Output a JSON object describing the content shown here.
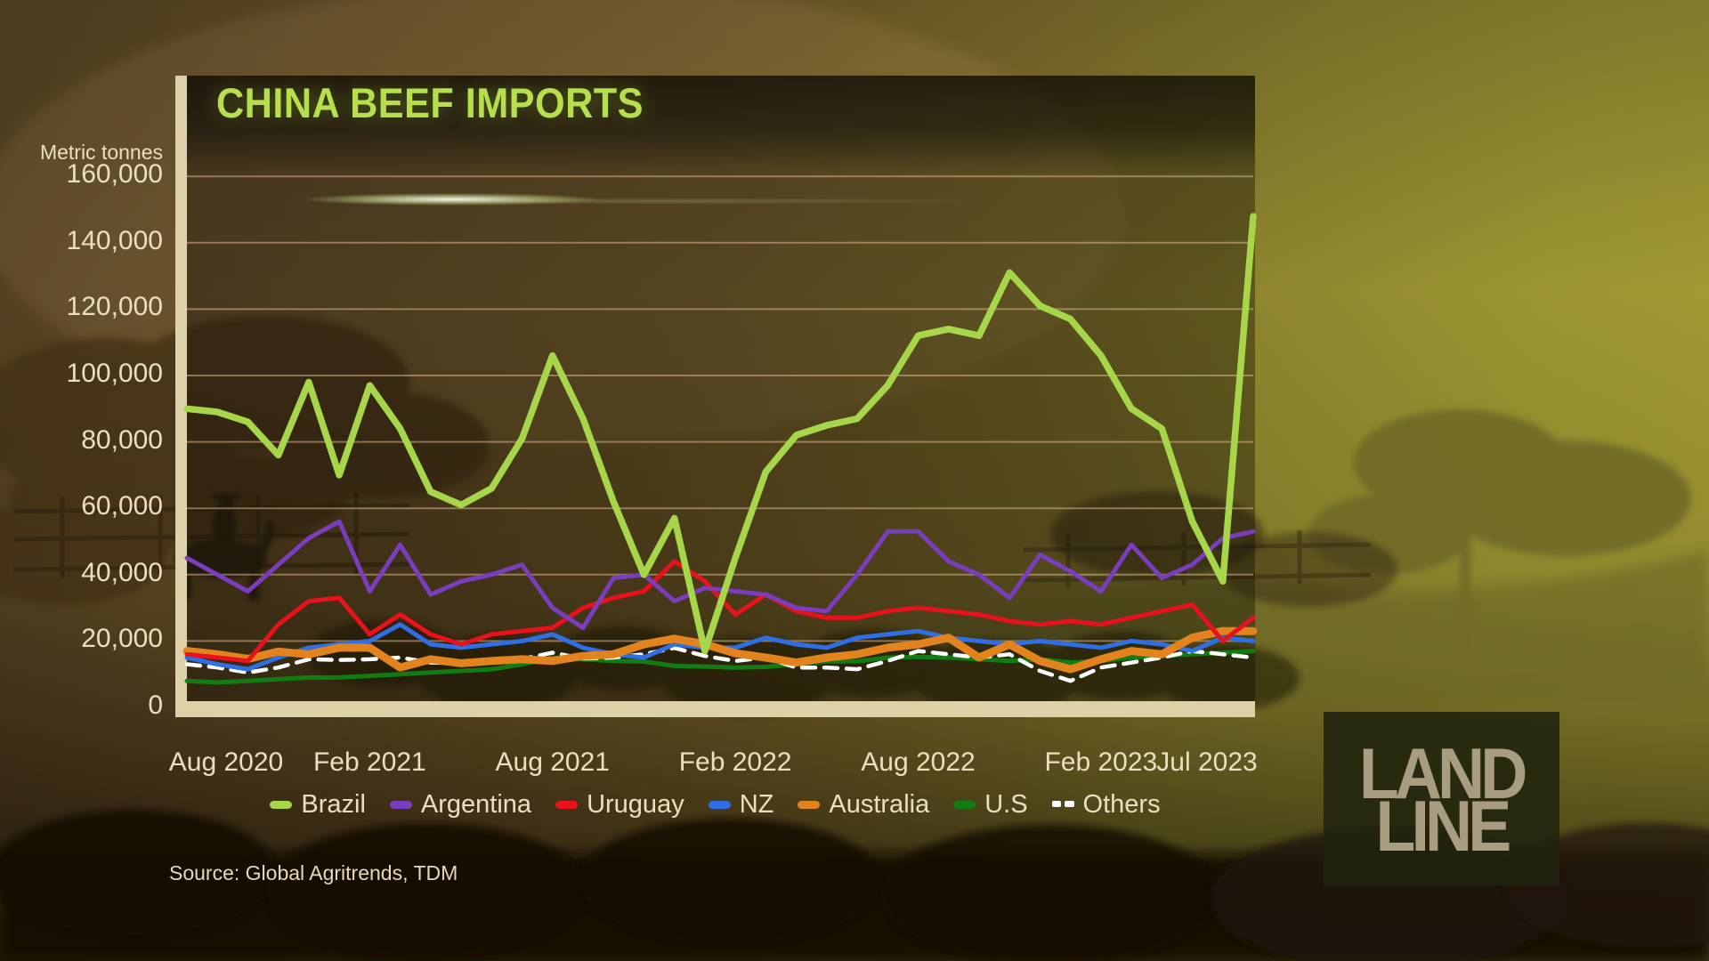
{
  "logo": {
    "line1": "LAND",
    "line2": "LINE"
  },
  "colors": {
    "title_green": "#b6de4d",
    "axis_text_cream": "#eadfc0",
    "axis_bar_cream": "#ddd1a8",
    "gridline": "#d8b38c"
  },
  "chart_data": {
    "type": "line",
    "title": "CHINA BEEF IMPORTS",
    "ylabel": "Metric tonnes",
    "xlabel": "",
    "source": "Source: Global Agritrends, TDM",
    "ylim": [
      0,
      160000
    ],
    "grid": true,
    "legend_position": "bottom",
    "points": 36,
    "x_start": "Aug 2020",
    "x_end": "Jul 2023",
    "y_tick_labels": [
      "0",
      "20,000",
      "40,000",
      "60,000",
      "80,000",
      "100,000",
      "120,000",
      "140,000",
      "160,000"
    ],
    "x_ticks": [
      {
        "label": "Aug 2020",
        "month": 0
      },
      {
        "label": "Feb 2021",
        "month": 6
      },
      {
        "label": "Aug 2021",
        "month": 12
      },
      {
        "label": "Feb 2022",
        "month": 18
      },
      {
        "label": "Aug 2022",
        "month": 24
      },
      {
        "label": "Feb 2023",
        "month": 30
      },
      {
        "label": "Jul 2023",
        "month": 35
      }
    ],
    "series": [
      {
        "name": "Brazil",
        "color": "#a8d64b",
        "stroke_width": 7.5,
        "dashed": false,
        "values": [
          90000,
          89000,
          86000,
          76000,
          98000,
          70000,
          97000,
          84000,
          65000,
          61000,
          66000,
          81000,
          106000,
          87000,
          62000,
          40000,
          57000,
          17000,
          45000,
          71000,
          82000,
          85000,
          87000,
          97000,
          112000,
          114000,
          112000,
          131000,
          121000,
          117000,
          106000,
          90000,
          84000,
          56000,
          38000,
          148000
        ]
      },
      {
        "name": "Argentina",
        "color": "#7a3dbd",
        "stroke_width": 5,
        "dashed": false,
        "values": [
          45000,
          40000,
          35000,
          43000,
          51000,
          56000,
          35000,
          49000,
          34000,
          38000,
          40000,
          43000,
          30000,
          24000,
          39000,
          40000,
          32000,
          36000,
          35000,
          34000,
          30000,
          29000,
          40000,
          53000,
          53000,
          44000,
          40000,
          33000,
          46000,
          41000,
          35000,
          49000,
          39000,
          43000,
          51000,
          53000
        ]
      },
      {
        "name": "Uruguay",
        "color": "#e8111c",
        "stroke_width": 5,
        "dashed": false,
        "values": [
          16000,
          15000,
          14000,
          25000,
          32000,
          33000,
          22000,
          28000,
          22000,
          19000,
          22000,
          23000,
          24000,
          30000,
          33000,
          35000,
          44000,
          38000,
          28000,
          34000,
          29000,
          27000,
          27000,
          29000,
          30000,
          29000,
          28000,
          26000,
          25000,
          26000,
          25000,
          27000,
          29000,
          31000,
          20000,
          27000
        ]
      },
      {
        "name": "NZ",
        "color": "#2f6ee4",
        "stroke_width": 5,
        "dashed": false,
        "values": [
          15000,
          13000,
          11500,
          15000,
          18000,
          19000,
          20000,
          25000,
          19000,
          18000,
          19000,
          20000,
          22000,
          18000,
          16000,
          15000,
          19000,
          18000,
          18000,
          21000,
          19000,
          18000,
          21000,
          22000,
          23000,
          21000,
          20000,
          19000,
          20000,
          19000,
          18000,
          20000,
          19000,
          17000,
          21000,
          20000
        ]
      },
      {
        "name": "Australia",
        "color": "#e2831d",
        "stroke_width": 9,
        "dashed": false,
        "values": [
          17000,
          16000,
          14600,
          16800,
          16000,
          18000,
          18000,
          12000,
          14500,
          13300,
          14000,
          14500,
          14000,
          15500,
          16000,
          19000,
          20700,
          19000,
          16300,
          15000,
          13500,
          15000,
          16000,
          18000,
          19000,
          21000,
          15000,
          19000,
          14000,
          11500,
          14500,
          17000,
          16000,
          21000,
          23000,
          23000
        ]
      },
      {
        "name": "U.S",
        "color": "#107c12",
        "stroke_width": 5,
        "dashed": false,
        "values": [
          8000,
          7500,
          8000,
          8500,
          9000,
          9000,
          9500,
          10000,
          10500,
          11000,
          11500,
          13000,
          15000,
          14500,
          14000,
          13800,
          12500,
          12300,
          12000,
          12200,
          13000,
          13900,
          13900,
          15000,
          15200,
          15000,
          14500,
          14000,
          14500,
          13500,
          14000,
          15000,
          15500,
          16000,
          16500,
          17000
        ]
      },
      {
        "name": "Others",
        "color": "#ffffff",
        "stroke_width": 4.5,
        "dashed": true,
        "values": [
          13000,
          12000,
          10500,
          12000,
          14500,
          14300,
          14500,
          15000,
          13500,
          13300,
          14000,
          14600,
          16500,
          14700,
          15000,
          16000,
          17900,
          15500,
          14000,
          15000,
          12000,
          12000,
          11500,
          14000,
          17000,
          16000,
          15000,
          16000,
          11000,
          8000,
          12000,
          13500,
          15000,
          17000,
          16000,
          15000
        ]
      }
    ]
  }
}
